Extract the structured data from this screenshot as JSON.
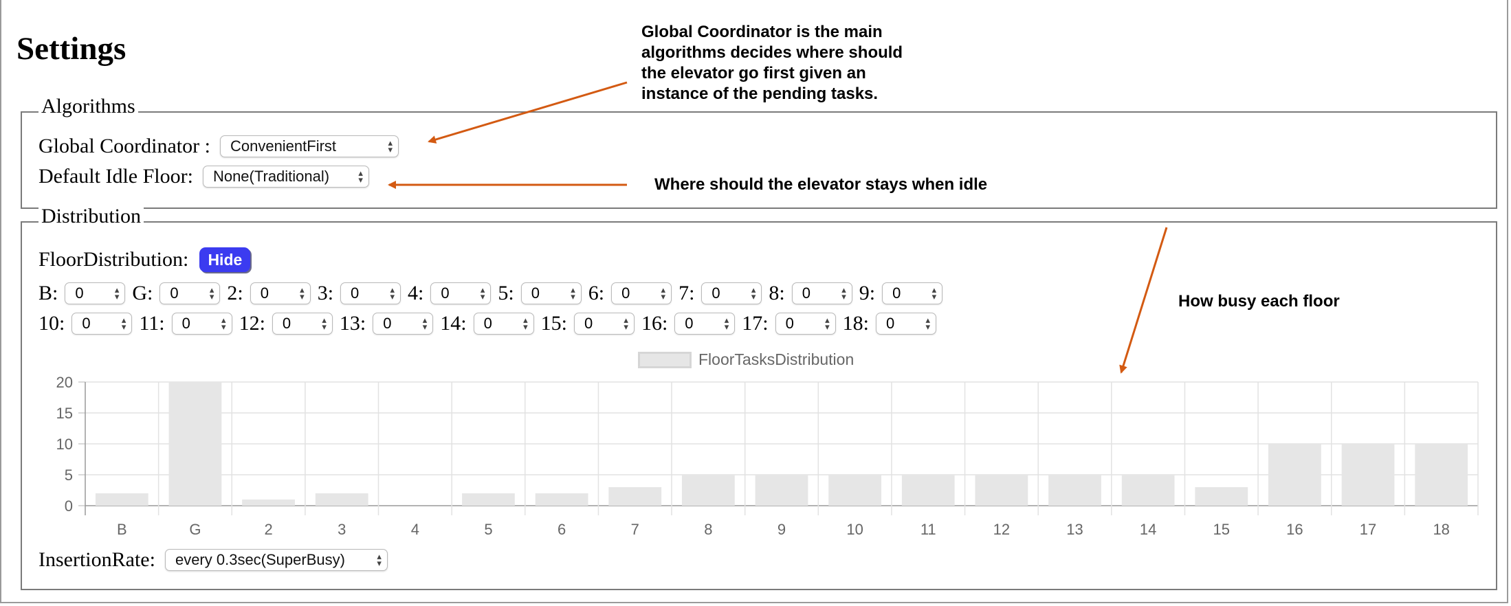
{
  "page": {
    "title": "Settings"
  },
  "algorithms": {
    "legend": "Algorithms",
    "global_coordinator": {
      "label": "Global Coordinator :",
      "value": "ConvenientFirst"
    },
    "idle_floor": {
      "label": "Default Idle Floor:",
      "value": "None(Traditional)"
    }
  },
  "distribution": {
    "legend": "Distribution",
    "floor_distribution_label": "FloorDistribution:",
    "hide_label": "Hide",
    "floors_row1": [
      {
        "label": "B:",
        "value": "0"
      },
      {
        "label": "G:",
        "value": "0"
      },
      {
        "label": "2:",
        "value": "0"
      },
      {
        "label": "3:",
        "value": "0"
      },
      {
        "label": "4:",
        "value": "0"
      },
      {
        "label": "5:",
        "value": "0"
      },
      {
        "label": "6:",
        "value": "0"
      },
      {
        "label": "7:",
        "value": "0"
      },
      {
        "label": "8:",
        "value": "0"
      },
      {
        "label": "9:",
        "value": "0"
      }
    ],
    "floors_row2": [
      {
        "label": "10:",
        "value": "0"
      },
      {
        "label": "11:",
        "value": "0"
      },
      {
        "label": "12:",
        "value": "0"
      },
      {
        "label": "13:",
        "value": "0"
      },
      {
        "label": "14:",
        "value": "0"
      },
      {
        "label": "15:",
        "value": "0"
      },
      {
        "label": "16:",
        "value": "0"
      },
      {
        "label": "17:",
        "value": "0"
      },
      {
        "label": "18:",
        "value": "0"
      }
    ],
    "insertion_rate": {
      "label": "InsertionRate:",
      "value": "every 0.3sec(SuperBusy)"
    }
  },
  "annotations": {
    "coordinator_note": "Global Coordinator is the main algorithms decides where should the elevator go first given an instance of the pending tasks.",
    "idle_note": "Where should the elevator stays when idle",
    "busy_note": "How busy each floor",
    "arrow_color": "#d35a12"
  },
  "chart_data": {
    "type": "bar",
    "categories": [
      "B",
      "G",
      "2",
      "3",
      "4",
      "5",
      "6",
      "7",
      "8",
      "9",
      "10",
      "11",
      "12",
      "13",
      "14",
      "15",
      "16",
      "17",
      "18"
    ],
    "series": [
      {
        "name": "FloorTasksDistribution",
        "values": [
          2,
          20,
          1,
          2,
          0,
          2,
          2,
          3,
          5,
          5,
          5,
          5,
          5,
          5,
          5,
          3,
          10,
          10,
          10
        ]
      }
    ],
    "ylim": [
      0,
      20
    ],
    "yticks": [
      0,
      5,
      10,
      15,
      20
    ],
    "grid": true,
    "legend_position": "top",
    "bar_color": "#e6e6e6"
  }
}
